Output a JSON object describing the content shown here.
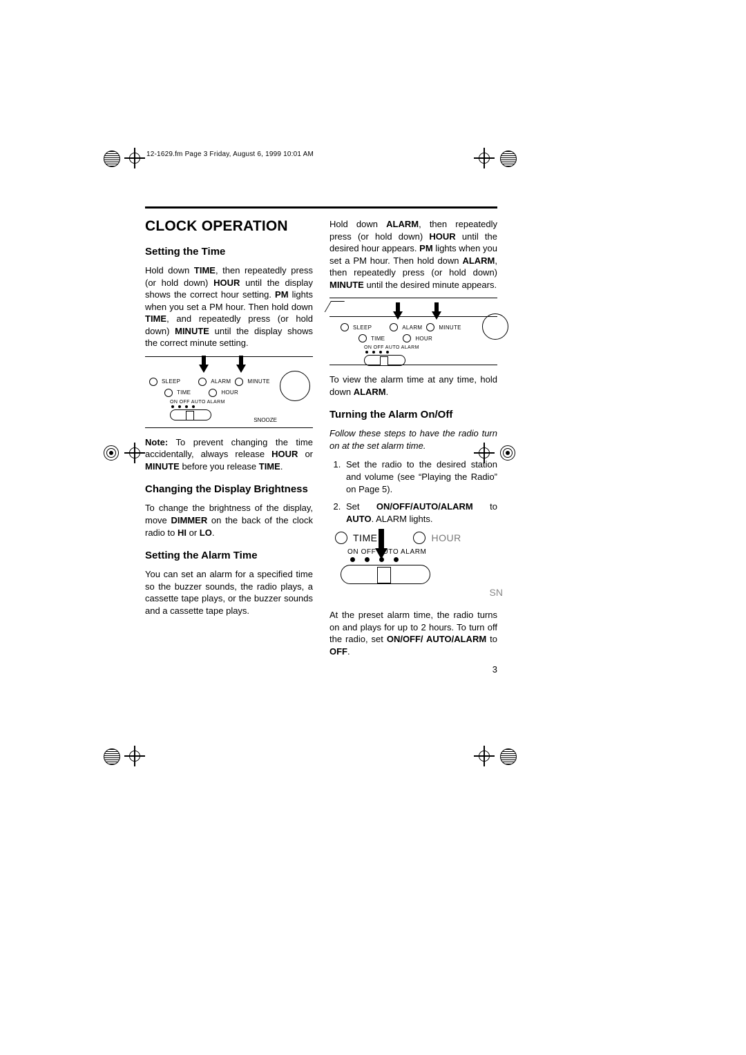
{
  "header": "12-1629.fm  Page 3  Friday, August 6, 1999  10:01 AM",
  "h1": "CLOCK OPERATION",
  "page_number": "3",
  "left": {
    "h2_time": "Setting the Time",
    "p_time": "Hold down <b>TIME</b>, then repeatedly press (or hold down) <b>HOUR</b> until the display shows the correct hour setting. <b>PM</b> lights when you set a PM hour. Then hold down <b>TIME</b>, and repeatedly press (or hold down) <b>MINUTE</b> until the display shows the correct minute setting.",
    "p_note": "<b>Note:</b> To prevent changing the time accidentally, always release <b>HOUR</b> or <b>MINUTE</b> before you release <b>TIME</b>.",
    "h2_bright": "Changing the Display Brightness",
    "p_bright": "To change the brightness of the display, move <b>DIMMER</b> on the back of the clock radio to <b>HI</b> or <b>LO</b>.",
    "h2_alarm": "Setting the Alarm Time",
    "p_alarm": "You can set an alarm for a specified time so the buzzer sounds, the radio plays, a cassette tape plays, or the buzzer sounds and a cassette tape plays."
  },
  "right": {
    "p_alarm_set": "Hold down <b>ALARM</b>, then repeatedly press (or hold down) <b>HOUR</b> until the desired hour appears. <b>PM</b> lights when you set a PM hour. Then hold down <b>ALARM</b>, then repeatedly press (or hold down) <b>MINUTE</b> until the desired minute appears.",
    "p_view": "To view the alarm time at any time, hold down <b>ALARM</b>.",
    "h2_onoff": "Turning the Alarm On/Off",
    "p_follow": "Follow these steps to have the radio turn on at the set alarm time.",
    "li1": "Set the radio to the desired station and volume (see “Playing the Radio” on Page 5).",
    "li2": "Set <b>ON/OFF/AUTO/ALARM</b> to <b>AUTO</b>. ALARM lights.",
    "p_end": "At the preset alarm time, the radio turns on and plays for up to 2 hours. To turn off the radio, set <b>ON/OFF/ AUTO/ALARM</b> to <b>OFF</b>."
  },
  "diag": {
    "sleep": "SLEEP",
    "alarm": "ALARM",
    "minute": "MINUTE",
    "time": "TIME",
    "hour": "HOUR",
    "switch": "ON OFF AUTO ALARM",
    "snooze": "SNOOZE",
    "sn": "SN"
  }
}
